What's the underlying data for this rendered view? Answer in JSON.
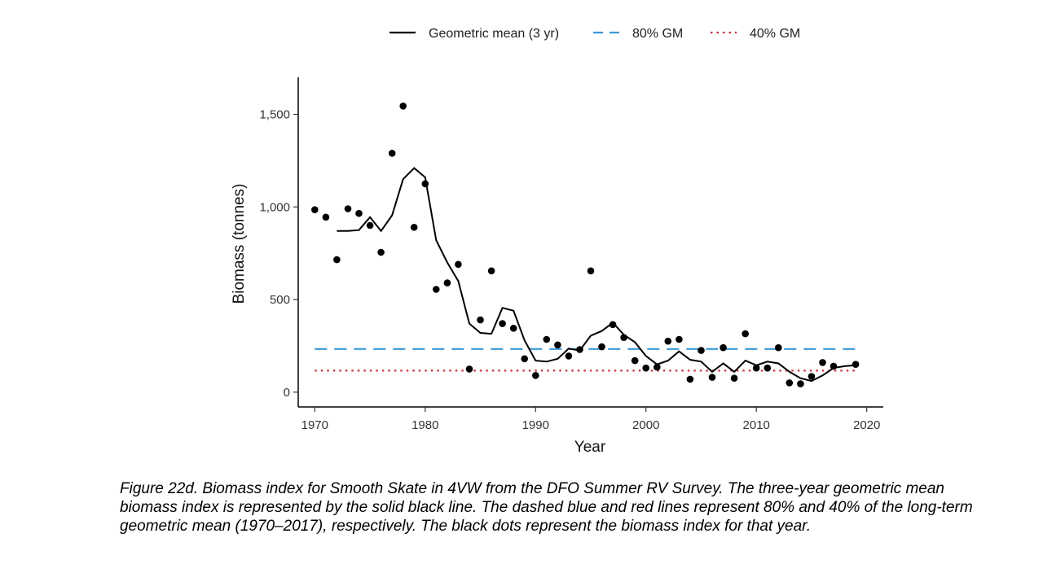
{
  "chart_data": {
    "type": "line",
    "xlabel": "Year",
    "ylabel": "Biomass (tonnes)",
    "xlim": [
      1968.5,
      2021.5
    ],
    "ylim": [
      -80,
      1700
    ],
    "x_ticks": [
      1970,
      1980,
      1990,
      2000,
      2010,
      2020
    ],
    "x_tick_labels": [
      "1970",
      "1980",
      "1990",
      "2000",
      "2010",
      "2020"
    ],
    "y_ticks": [
      0,
      500,
      1000,
      1500
    ],
    "y_tick_labels": [
      "0",
      "500",
      "1,000",
      "1,500"
    ],
    "grid": false,
    "legend_position": "top",
    "legend": [
      {
        "label": "Geometric mean (3 yr)",
        "style": "solid",
        "color": "#000000"
      },
      {
        "label": "80% GM",
        "style": "dashed",
        "color": "#3b9ad9"
      },
      {
        "label": "40% GM",
        "style": "dotted",
        "color": "#c8323c"
      }
    ],
    "points": {
      "color": "#000000",
      "x": [
        1970,
        1971,
        1972,
        1973,
        1974,
        1975,
        1976,
        1977,
        1978,
        1979,
        1980,
        1981,
        1982,
        1983,
        1984,
        1985,
        1986,
        1987,
        1988,
        1989,
        1990,
        1991,
        1992,
        1993,
        1994,
        1995,
        1996,
        1997,
        1998,
        1999,
        2000,
        2001,
        2002,
        2003,
        2004,
        2005,
        2006,
        2007,
        2008,
        2009,
        2010,
        2011,
        2012,
        2013,
        2014,
        2015,
        2016,
        2017,
        2019
      ],
      "y": [
        985,
        945,
        715,
        990,
        965,
        900,
        755,
        1290,
        1545,
        890,
        1125,
        555,
        590,
        690,
        125,
        390,
        655,
        370,
        345,
        180,
        90,
        285,
        255,
        195,
        230,
        655,
        245,
        365,
        295,
        170,
        130,
        135,
        275,
        285,
        70,
        225,
        80,
        240,
        75,
        315,
        130,
        130,
        240,
        50,
        45,
        85,
        160,
        140,
        150
      ]
    },
    "series": [
      {
        "style": "solid",
        "color": "#000000",
        "x": [
          1972,
          1973,
          1974,
          1975,
          1976,
          1977,
          1978,
          1979,
          1980,
          1981,
          1982,
          1983,
          1984,
          1985,
          1986,
          1987,
          1988,
          1989,
          1990,
          1991,
          1992,
          1993,
          1994,
          1995,
          1996,
          1997,
          1998,
          1999,
          2000,
          2001,
          2002,
          2003,
          2004,
          2005,
          2006,
          2007,
          2008,
          2009,
          2010,
          2011,
          2012,
          2013,
          2014,
          2015,
          2016,
          2017,
          2018,
          2019
        ],
        "y": [
          870,
          870,
          875,
          945,
          870,
          955,
          1150,
          1210,
          1160,
          820,
          700,
          600,
          370,
          320,
          315,
          455,
          440,
          280,
          170,
          165,
          180,
          235,
          225,
          305,
          330,
          375,
          310,
          270,
          195,
          150,
          170,
          220,
          175,
          165,
          110,
          155,
          110,
          170,
          145,
          165,
          155,
          110,
          75,
          60,
          90,
          130,
          140,
          145
        ]
      },
      {
        "style": "dashed",
        "color": "#3b9ad9",
        "x": [
          1970,
          2019
        ],
        "y": [
          233,
          233
        ]
      },
      {
        "style": "dotted",
        "color": "#c8323c",
        "x": [
          1970,
          2019
        ],
        "y": [
          116,
          116
        ]
      }
    ]
  },
  "caption": "Figure 22d. Biomass index for Smooth Skate in 4VW from the DFO Summer RV Survey. The three-year geometric mean biomass index is represented by the solid black line. The dashed blue and red lines represent 80% and 40% of the long-term geometric mean (1970–2017), respectively. The black dots represent the biomass index for that year."
}
